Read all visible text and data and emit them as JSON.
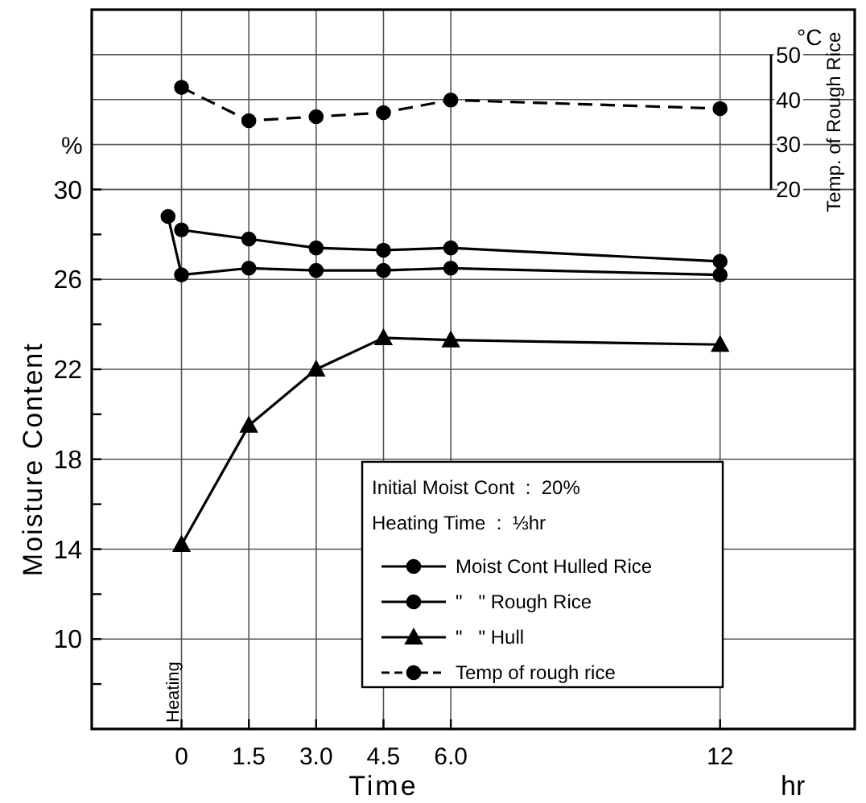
{
  "chart_data": {
    "type": "line",
    "xlabel": "Time",
    "ylabel": "Moisture Content",
    "y2label": "Temp. of Rough Rice",
    "xlim": [
      -2,
      15
    ],
    "xticks": [
      0,
      {
        "value": 1.5,
        "label": "1.5"
      },
      {
        "value": 3,
        "label": "3.0"
      },
      {
        "value": 4.5,
        "label": "4.5"
      },
      {
        "value": 6,
        "label": "6.0"
      },
      12
    ],
    "ylim": [
      6,
      38
    ],
    "yticks": [
      {
        "value": 8,
        "label": null
      },
      10,
      {
        "value": 12,
        "label": null
      },
      14,
      {
        "value": 16,
        "label": null
      },
      18,
      {
        "value": 20,
        "label": null
      },
      22,
      {
        "value": 24,
        "label": null
      },
      26,
      {
        "value": 28,
        "label": null
      },
      30
    ],
    "y2lim": [
      -100,
      60
    ],
    "y2ticks": [
      20,
      30,
      40,
      50
    ],
    "grid": true,
    "legend": "bottom right",
    "line_style": "solid",
    "annotations": [
      "%",
      "°C",
      "hr",
      "Heating",
      "Initial Moist Cont  :  20%",
      "Heating Time  :  ⅓hr"
    ],
    "series": [
      {
        "name": "Moist Cont Hulled Rice",
        "color": "#000000",
        "marker": "circle",
        "x": [
          0,
          1.5,
          3,
          4.5,
          6,
          12
        ],
        "values": [
          28.2,
          27.8,
          27.4,
          27.3,
          27.4,
          26.8
        ]
      },
      {
        "name": "\"   \" Rough Rice",
        "color": "#000000",
        "marker": "circle",
        "x": [
          -0.3,
          0,
          1.5,
          3,
          4.5,
          6,
          12
        ],
        "values": [
          28.8,
          26.2,
          26.5,
          26.4,
          26.4,
          26.5,
          26.2
        ]
      },
      {
        "name": "\"   \" Hull",
        "color": "#000000",
        "marker": "triangle",
        "x": [
          0,
          1.5,
          3,
          4.5,
          6,
          12
        ],
        "values": [
          14.2,
          19.5,
          22.0,
          23.4,
          23.3,
          23.1
        ]
      },
      {
        "name": "Temp of rough rice",
        "color": "#000000",
        "marker": "circle",
        "line_style": "dashed",
        "axis": "y2",
        "x": [
          0,
          1.5,
          3,
          4.5,
          6,
          12
        ],
        "values": [
          42.7,
          35.3,
          36.2,
          37.1,
          39.9,
          38.0
        ]
      }
    ]
  }
}
